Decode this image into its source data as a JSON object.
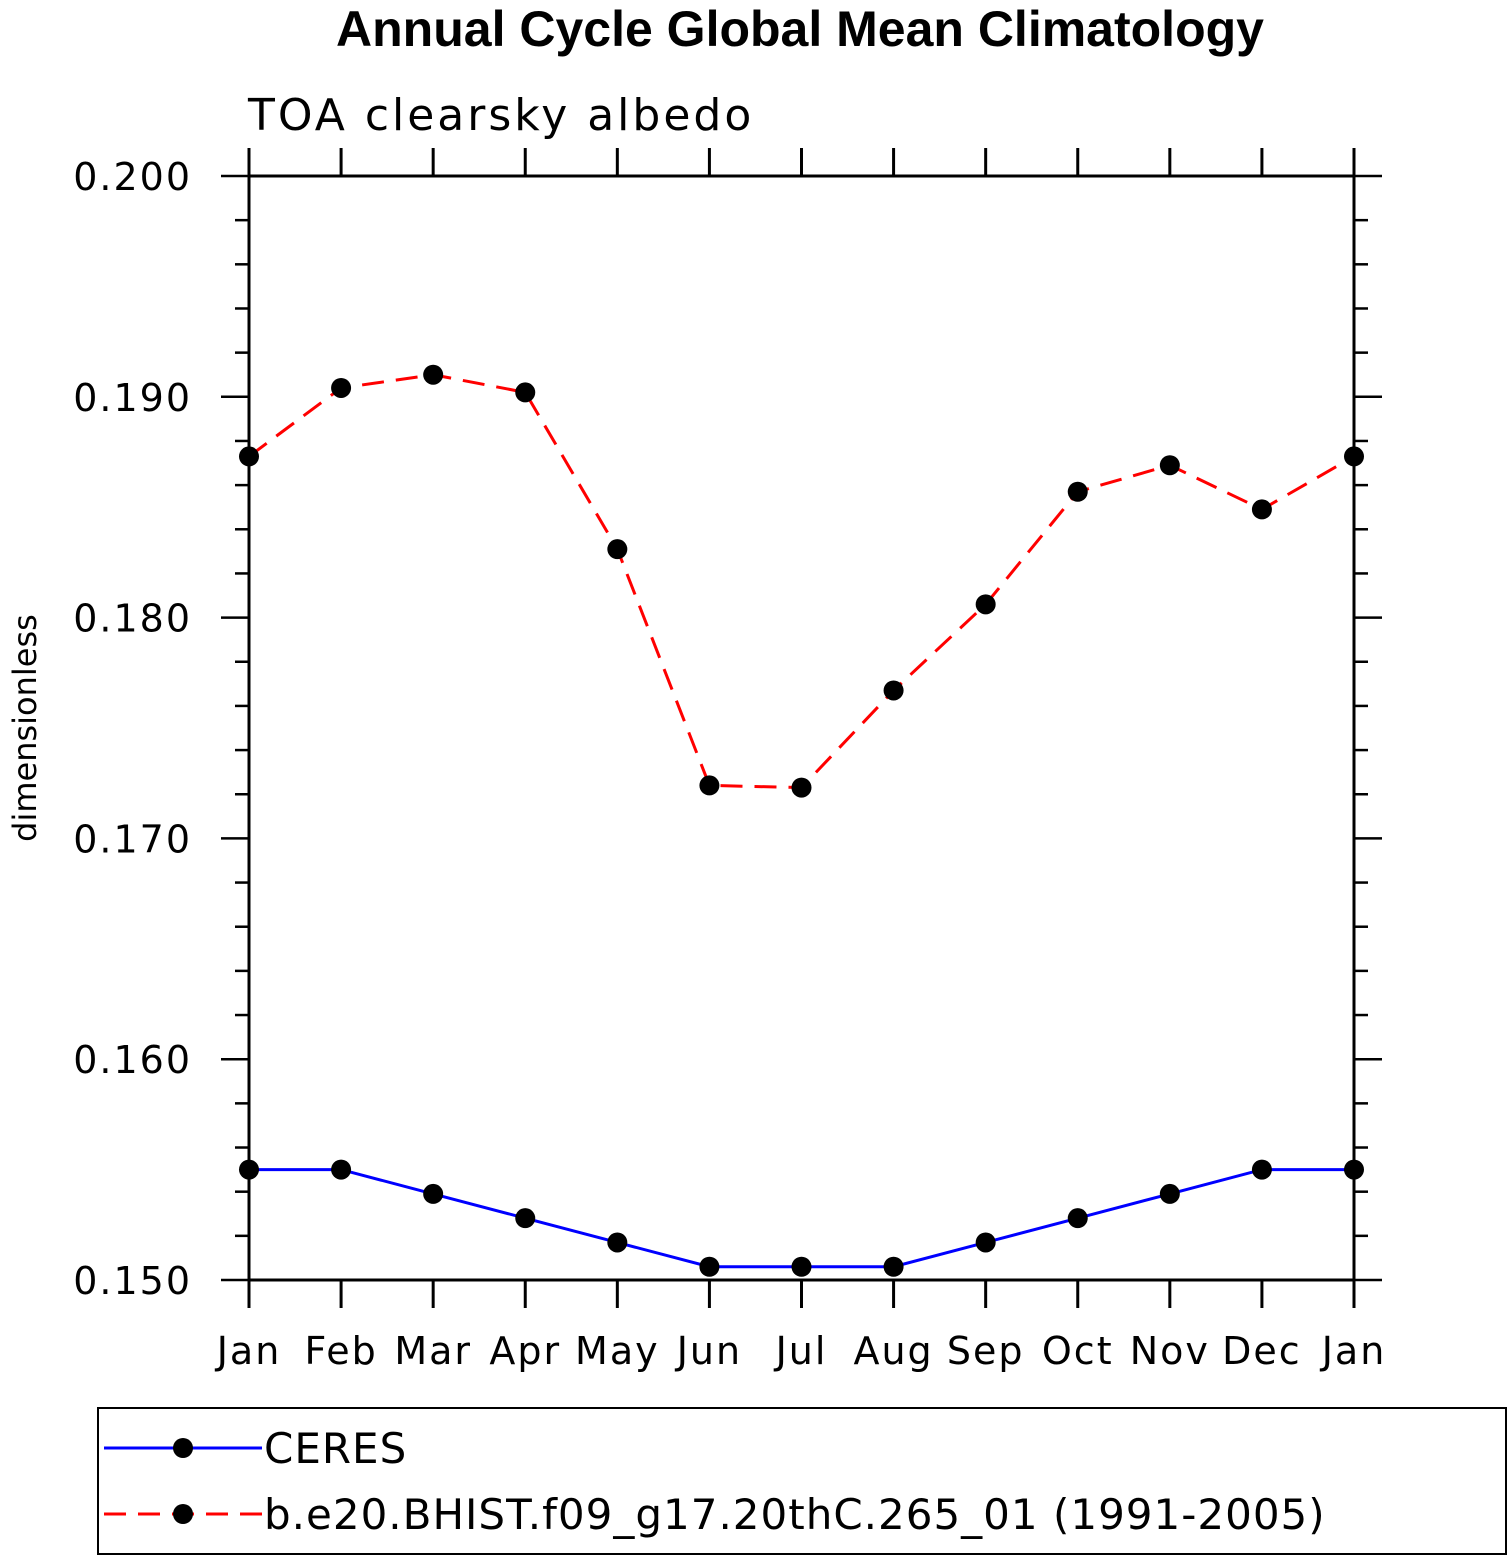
{
  "chart_data": {
    "type": "line",
    "title": "Annual Cycle Global Mean Climatology",
    "subtitle": "TOA clearsky albedo",
    "xlabel": "",
    "ylabel": "dimensionless",
    "categories": [
      "Jan",
      "Feb",
      "Mar",
      "Apr",
      "May",
      "Jun",
      "Jul",
      "Aug",
      "Sep",
      "Oct",
      "Nov",
      "Dec",
      "Jan"
    ],
    "ylim": [
      0.15,
      0.2
    ],
    "yticks": [
      "0.150",
      "0.160",
      "0.170",
      "0.180",
      "0.190",
      "0.200"
    ],
    "grid": false,
    "legend_position": "bottom",
    "series": [
      {
        "name": "CERES",
        "color": "#0000ff",
        "dash": "solid",
        "marker": "filled-circle",
        "values": [
          0.155,
          0.155,
          0.1539,
          0.1528,
          0.1517,
          0.1506,
          0.1506,
          0.1506,
          0.1517,
          0.1528,
          0.1539,
          0.155,
          0.155
        ]
      },
      {
        "name": "b.e20.BHIST.f09_g17.20thC.265_01 (1991-2005)",
        "color": "#ff0000",
        "dash": "dashed",
        "marker": "filled-circle",
        "values": [
          0.1873,
          0.1904,
          0.191,
          0.1902,
          0.1831,
          0.1724,
          0.1723,
          0.1767,
          0.1806,
          0.1857,
          0.1869,
          0.1849,
          0.1873
        ]
      }
    ]
  }
}
